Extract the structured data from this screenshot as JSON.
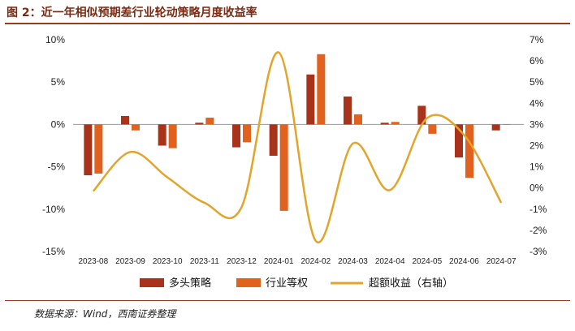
{
  "figure": {
    "title": "图 2：近一年相似预期差行业轮动策略月度收益率",
    "source": "数据来源：Wind，西南证券整理"
  },
  "colors": {
    "title": "#7a2a12",
    "rule": "#9c3a1c",
    "long_short": "#a8321a",
    "industry_equal": "#e0621e",
    "excess": "#e3a42a"
  },
  "chart_data": {
    "type": "bar+line",
    "categories": [
      "2023-08",
      "2023-09",
      "2023-10",
      "2023-11",
      "2023-12",
      "2024-01",
      "2024-02",
      "2024-03",
      "2024-04",
      "2024-05",
      "2024-06",
      "2024-07"
    ],
    "series": [
      {
        "name": "多头策略",
        "type": "bar",
        "axis": "left",
        "values": [
          -6.0,
          1.0,
          -2.5,
          0.2,
          -2.7,
          -3.7,
          5.9,
          3.3,
          0.2,
          2.2,
          -3.9,
          -0.7
        ]
      },
      {
        "name": "行业等权",
        "type": "bar",
        "axis": "left",
        "values": [
          -5.8,
          -0.7,
          -2.8,
          0.8,
          -2.1,
          -10.2,
          8.3,
          1.2,
          0.3,
          -1.1,
          -6.3,
          0.0
        ]
      },
      {
        "name": "超额收益（右轴）",
        "type": "line",
        "axis": "right",
        "smooth": true,
        "values": [
          -0.15,
          1.7,
          0.5,
          -0.7,
          -0.9,
          6.4,
          -2.5,
          2.1,
          -0.1,
          3.3,
          2.5,
          -0.7
        ]
      }
    ],
    "y_left": {
      "min": -15,
      "max": 10,
      "step": 5,
      "ticks": [
        "10%",
        "5%",
        "0%",
        "-5%",
        "-10%",
        "-15%"
      ]
    },
    "y_right": {
      "min": -3,
      "max": 7,
      "step": 1,
      "ticks": [
        "7%",
        "6%",
        "5%",
        "4%",
        "3%",
        "2%",
        "1%",
        "0%",
        "-1%",
        "-2%",
        "-3%"
      ]
    },
    "legend_position": "bottom",
    "grid": false
  }
}
